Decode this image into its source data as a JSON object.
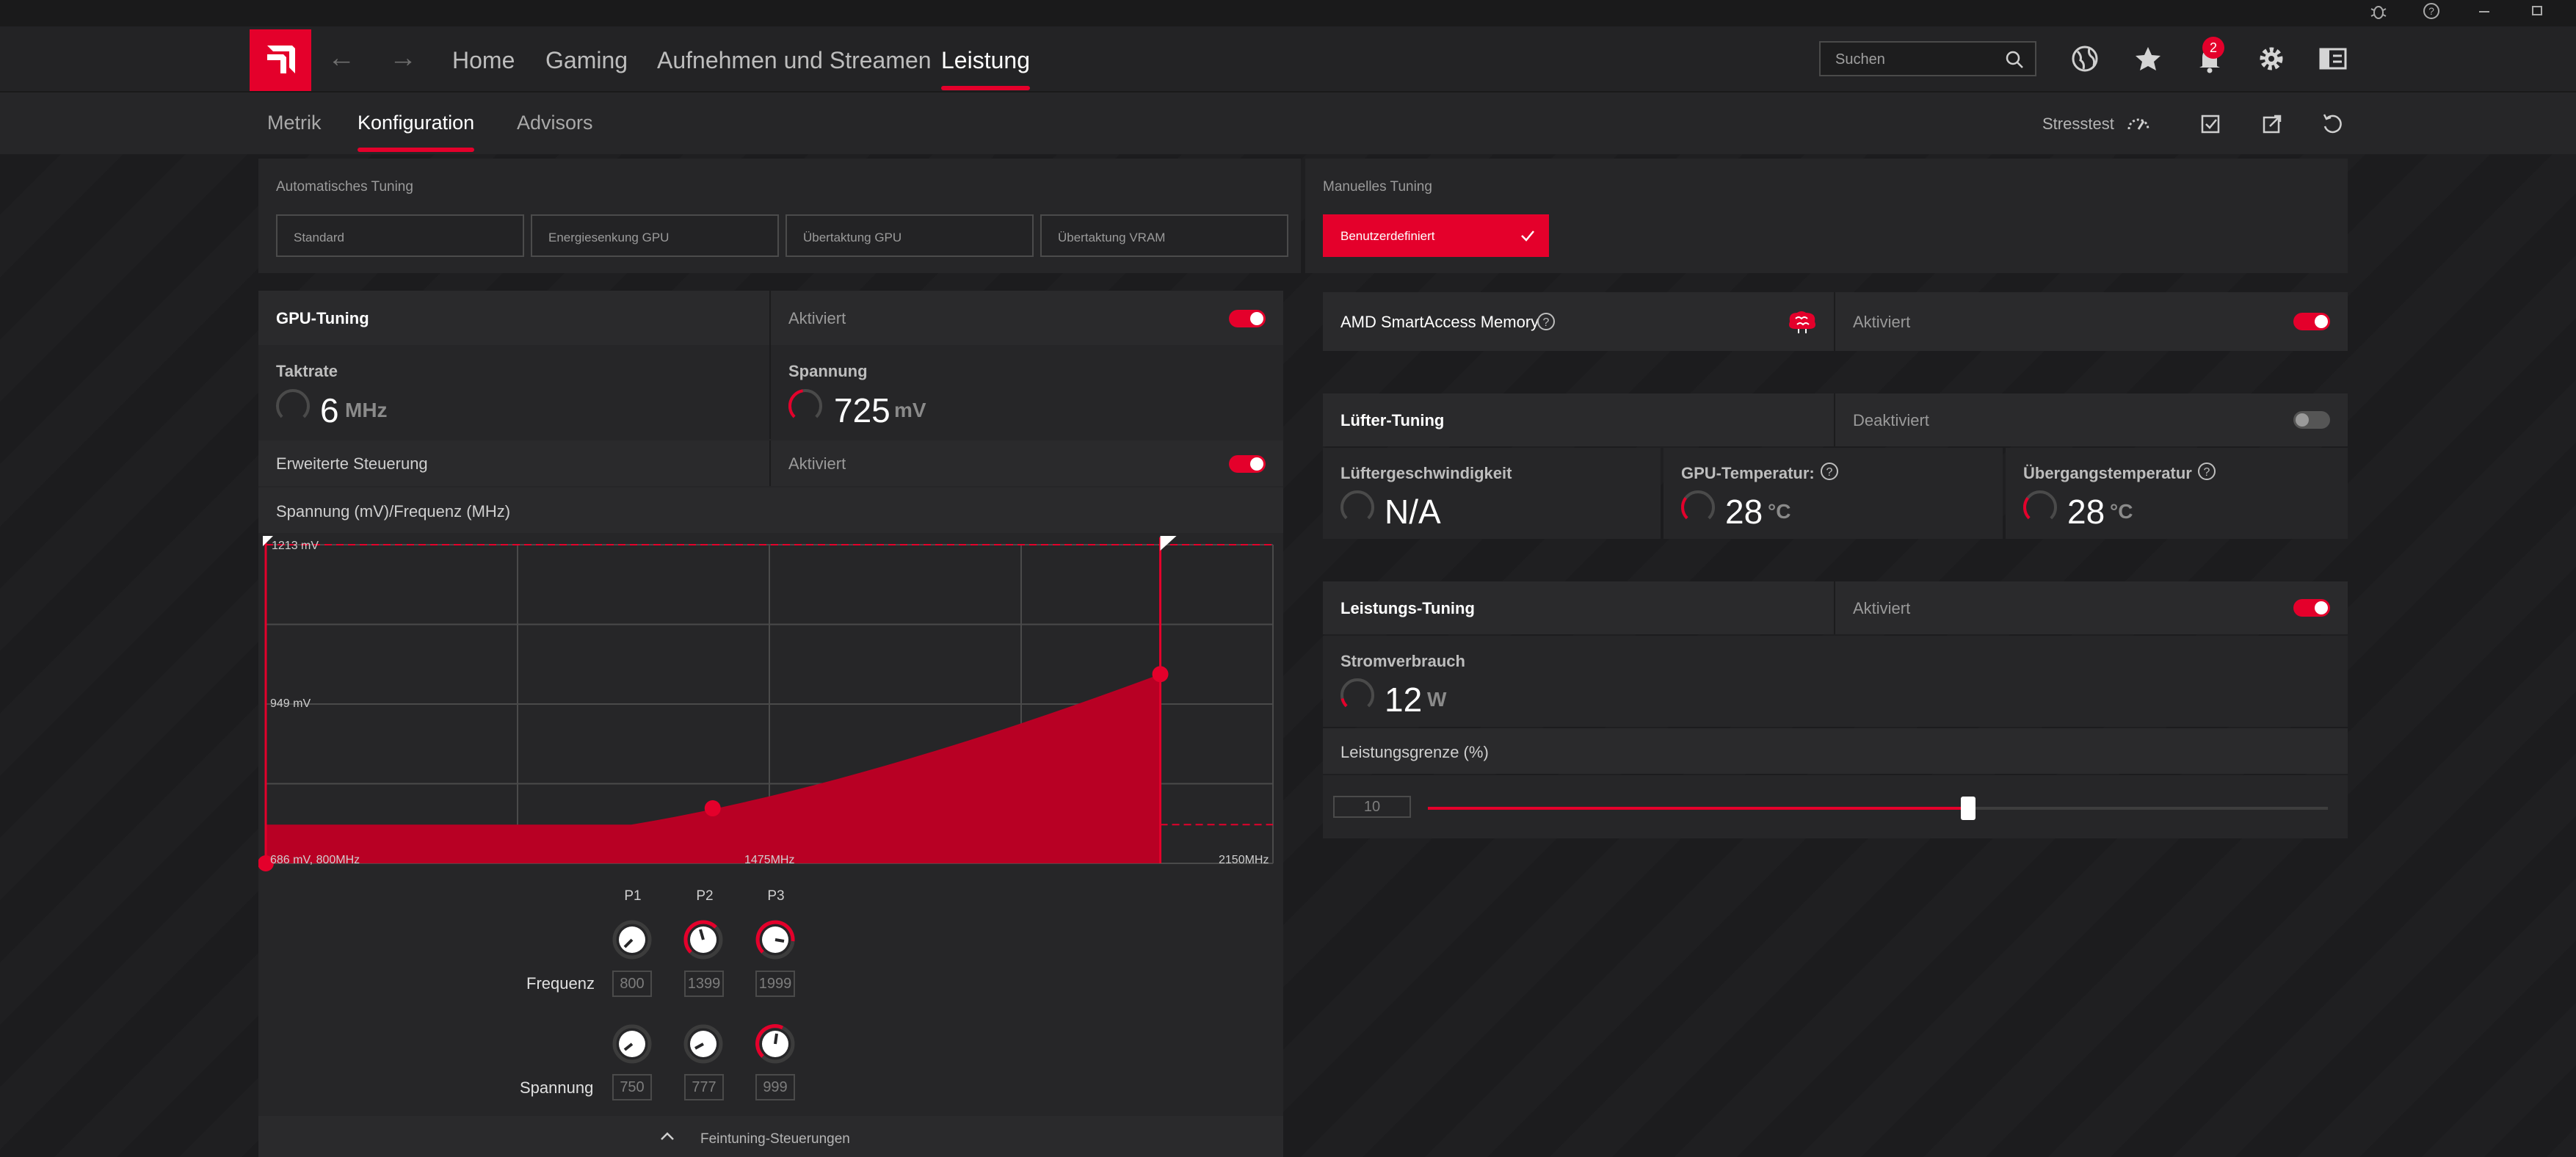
{
  "nav": {
    "tabs": [
      "Home",
      "Gaming",
      "Aufnehmen und Streamen",
      "Leistung"
    ],
    "search_placeholder": "Suchen",
    "notification_count": "2"
  },
  "subnav": {
    "tabs": [
      "Metrik",
      "Konfiguration",
      "Advisors"
    ],
    "stress_label": "Stresstest"
  },
  "auto_tuning": {
    "label": "Automatisches Tuning",
    "presets": [
      "Standard",
      "Energiesenkung GPU",
      "Übertaktung GPU",
      "Übertaktung VRAM"
    ]
  },
  "manual_tuning": {
    "label": "Manuelles Tuning",
    "preset": "Benutzerdefiniert"
  },
  "gpu_tuning": {
    "title": "GPU-Tuning",
    "state": "Aktiviert",
    "enabled": true,
    "clock": {
      "label": "Taktrate",
      "value": "6",
      "unit": "MHz"
    },
    "voltage": {
      "label": "Spannung",
      "value": "725",
      "unit": "mV"
    },
    "advanced": {
      "title": "Erweiterte Steuerung",
      "state": "Aktiviert",
      "enabled": true
    },
    "curve_title": "Spannung (mV)/Frequenz (MHz)"
  },
  "chart_data": {
    "type": "area",
    "title": "Spannung (mV)/Frequenz (MHz)",
    "x_unit": "MHz",
    "y_unit": "mV",
    "xlim": [
      800,
      2150
    ],
    "ylim": [
      686,
      1213
    ],
    "y_tick_labels": [
      "1213 mV",
      "949 mV"
    ],
    "x_tick_labels": [
      "686 mV, 800MHz",
      "1475MHz",
      "2150MHz"
    ],
    "points": [
      {
        "name": "start",
        "x": 800,
        "y": 686
      },
      {
        "name": "P1",
        "x": 800,
        "y": 750
      },
      {
        "name": "P2",
        "x": 1399,
        "y": 777
      },
      {
        "name": "P3",
        "x": 1999,
        "y": 999
      }
    ],
    "lower_limit_mv": 750,
    "max_frequency_mhz": 1999
  },
  "pstates": {
    "labels": [
      "P1",
      "P2",
      "P3"
    ],
    "frequency_label": "Frequenz",
    "voltage_label": "Spannung",
    "frequency": [
      "800",
      "1399",
      "1999"
    ],
    "voltage": [
      "750",
      "777",
      "999"
    ],
    "footer": "Feintuning-Steuerungen"
  },
  "smart_access": {
    "title": "AMD SmartAccess Memory",
    "state": "Aktiviert",
    "enabled": true
  },
  "fan_tuning": {
    "title": "Lüfter-Tuning",
    "state": "Deaktiviert",
    "enabled": false,
    "speed": {
      "label": "Lüftergeschwindigkeit",
      "value": "N/A"
    },
    "gpu_temp": {
      "label": "GPU-Temperatur:",
      "value": "28",
      "unit": "°C"
    },
    "junction_temp": {
      "label": "Übergangstemperatur",
      "value": "28",
      "unit": "°C"
    }
  },
  "power_tuning": {
    "title": "Leistungs-Tuning",
    "state": "Aktiviert",
    "enabled": true,
    "consumption": {
      "label": "Stromverbrauch",
      "value": "12",
      "unit": "W"
    },
    "limit_label": "Leistungsgrenze (%)",
    "limit_value": "10",
    "limit_fraction": 0.6
  },
  "colors": {
    "accent": "#e4002b",
    "panel": "#262628",
    "row": "#2a2a2c"
  }
}
